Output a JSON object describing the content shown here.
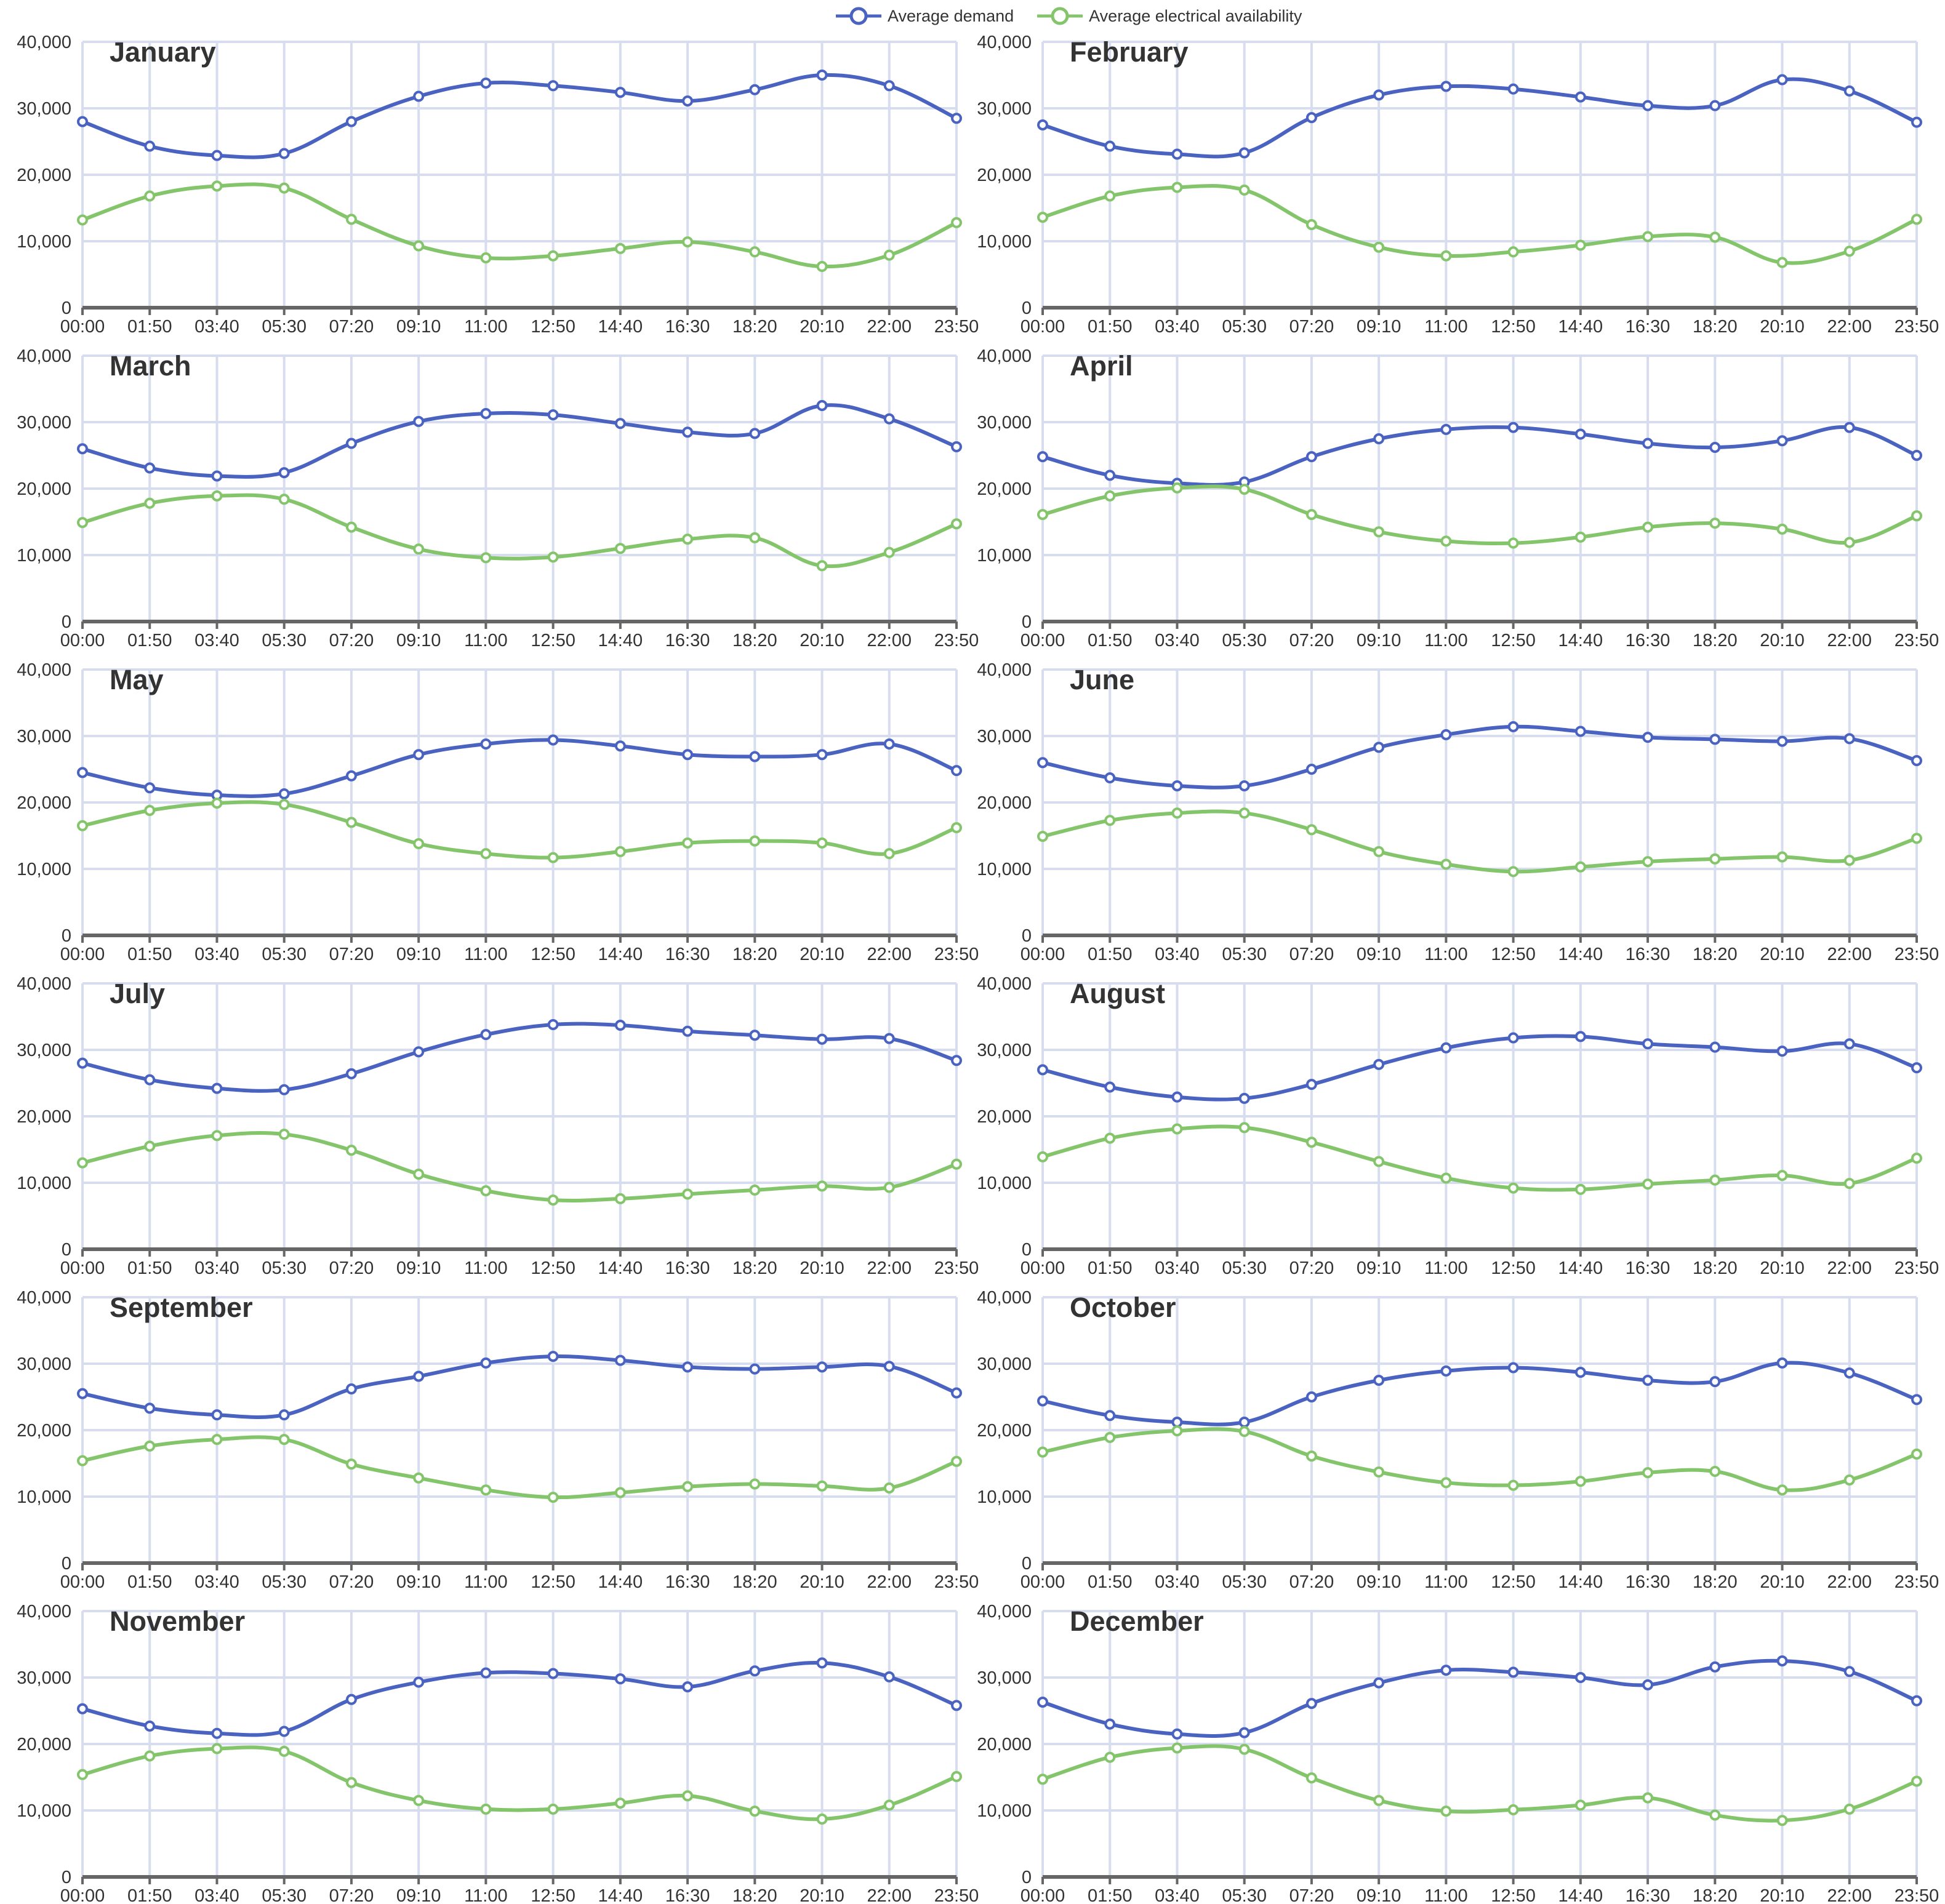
{
  "legend": {
    "demand_label": "Average demand",
    "availability_label": "Average electrical availability"
  },
  "colors": {
    "demand": "#4a63c1",
    "availability": "#84c56b",
    "grid": "#d7ddef",
    "axis": "#666666",
    "text": "#333333"
  },
  "chart_data": [
    {
      "type": "line",
      "title": "January",
      "x": [
        "00:00",
        "01:50",
        "03:40",
        "05:30",
        "07:20",
        "09:10",
        "11:00",
        "12:50",
        "14:40",
        "16:30",
        "18:20",
        "20:10",
        "22:00",
        "23:50"
      ],
      "ylim": [
        0,
        40000
      ],
      "yticks": [
        0,
        10000,
        20000,
        30000,
        40000
      ],
      "grid": true,
      "legend": "top-center",
      "series": [
        {
          "name": "Average demand",
          "values": [
            28000,
            24300,
            22900,
            23200,
            28000,
            31800,
            33800,
            33400,
            32400,
            31100,
            32800,
            35000,
            33400,
            28500
          ]
        },
        {
          "name": "Average electrical availability",
          "values": [
            13200,
            16800,
            18300,
            18000,
            13300,
            9300,
            7500,
            7800,
            8900,
            9900,
            8400,
            6200,
            7900,
            12800
          ]
        }
      ]
    },
    {
      "type": "line",
      "title": "February",
      "x": [
        "00:00",
        "01:50",
        "03:40",
        "05:30",
        "07:20",
        "09:10",
        "11:00",
        "12:50",
        "14:40",
        "16:30",
        "18:20",
        "20:10",
        "22:00",
        "23:50"
      ],
      "ylim": [
        0,
        40000
      ],
      "yticks": [
        0,
        10000,
        20000,
        30000,
        40000
      ],
      "grid": true,
      "legend": "top-center",
      "series": [
        {
          "name": "Average demand",
          "values": [
            27500,
            24300,
            23100,
            23300,
            28600,
            32000,
            33300,
            32900,
            31700,
            30400,
            30400,
            34300,
            32600,
            27900
          ]
        },
        {
          "name": "Average electrical availability",
          "values": [
            13600,
            16800,
            18100,
            17700,
            12500,
            9100,
            7800,
            8400,
            9400,
            10700,
            10600,
            6800,
            8500,
            13300
          ]
        }
      ]
    },
    {
      "type": "line",
      "title": "March",
      "x": [
        "00:00",
        "01:50",
        "03:40",
        "05:30",
        "07:20",
        "09:10",
        "11:00",
        "12:50",
        "14:40",
        "16:30",
        "18:20",
        "20:10",
        "22:00",
        "23:50"
      ],
      "ylim": [
        0,
        40000
      ],
      "yticks": [
        0,
        10000,
        20000,
        30000,
        40000
      ],
      "grid": true,
      "legend": "top-center",
      "series": [
        {
          "name": "Average demand",
          "values": [
            26000,
            23100,
            21900,
            22400,
            26800,
            30100,
            31300,
            31100,
            29800,
            28500,
            28300,
            32500,
            30500,
            26300
          ]
        },
        {
          "name": "Average electrical availability",
          "values": [
            14900,
            17800,
            18900,
            18400,
            14200,
            10900,
            9600,
            9700,
            11000,
            12400,
            12600,
            8400,
            10400,
            14700
          ]
        }
      ]
    },
    {
      "type": "line",
      "title": "April",
      "x": [
        "00:00",
        "01:50",
        "03:40",
        "05:30",
        "07:20",
        "09:10",
        "11:00",
        "12:50",
        "14:40",
        "16:30",
        "18:20",
        "20:10",
        "22:00",
        "23:50"
      ],
      "ylim": [
        0,
        40000
      ],
      "yticks": [
        0,
        10000,
        20000,
        30000,
        40000
      ],
      "grid": true,
      "legend": "top-center",
      "series": [
        {
          "name": "Average demand",
          "values": [
            24800,
            22000,
            20800,
            21000,
            24800,
            27500,
            28900,
            29200,
            28200,
            26800,
            26200,
            27200,
            29200,
            25000
          ]
        },
        {
          "name": "Average electrical availability",
          "values": [
            16100,
            18900,
            20100,
            19900,
            16100,
            13500,
            12100,
            11800,
            12700,
            14200,
            14800,
            13900,
            11900,
            15900
          ]
        }
      ]
    },
    {
      "type": "line",
      "title": "May",
      "x": [
        "00:00",
        "01:50",
        "03:40",
        "05:30",
        "07:20",
        "09:10",
        "11:00",
        "12:50",
        "14:40",
        "16:30",
        "18:20",
        "20:10",
        "22:00",
        "23:50"
      ],
      "ylim": [
        0,
        40000
      ],
      "yticks": [
        0,
        10000,
        20000,
        30000,
        40000
      ],
      "grid": true,
      "legend": "top-center",
      "series": [
        {
          "name": "Average demand",
          "values": [
            24500,
            22200,
            21100,
            21300,
            24000,
            27200,
            28800,
            29400,
            28500,
            27200,
            26900,
            27200,
            28800,
            24800
          ]
        },
        {
          "name": "Average electrical availability",
          "values": [
            16500,
            18800,
            19900,
            19700,
            17000,
            13800,
            12300,
            11700,
            12600,
            13900,
            14200,
            13900,
            12300,
            16200
          ]
        }
      ]
    },
    {
      "type": "line",
      "title": "June",
      "x": [
        "00:00",
        "01:50",
        "03:40",
        "05:30",
        "07:20",
        "09:10",
        "11:00",
        "12:50",
        "14:40",
        "16:30",
        "18:20",
        "20:10",
        "22:00",
        "23:50"
      ],
      "ylim": [
        0,
        40000
      ],
      "yticks": [
        0,
        10000,
        20000,
        30000,
        40000
      ],
      "grid": true,
      "legend": "top-center",
      "series": [
        {
          "name": "Average demand",
          "values": [
            26000,
            23700,
            22500,
            22500,
            25000,
            28300,
            30200,
            31400,
            30700,
            29800,
            29500,
            29200,
            29600,
            26300
          ]
        },
        {
          "name": "Average electrical availability",
          "values": [
            14900,
            17300,
            18400,
            18400,
            15900,
            12600,
            10700,
            9600,
            10300,
            11100,
            11500,
            11800,
            11300,
            14600
          ]
        }
      ]
    },
    {
      "type": "line",
      "title": "July",
      "x": [
        "00:00",
        "01:50",
        "03:40",
        "05:30",
        "07:20",
        "09:10",
        "11:00",
        "12:50",
        "14:40",
        "16:30",
        "18:20",
        "20:10",
        "22:00",
        "23:50"
      ],
      "ylim": [
        0,
        40000
      ],
      "yticks": [
        0,
        10000,
        20000,
        30000,
        40000
      ],
      "grid": true,
      "legend": "top-center",
      "series": [
        {
          "name": "Average demand",
          "values": [
            28000,
            25500,
            24200,
            24000,
            26400,
            29700,
            32300,
            33800,
            33700,
            32800,
            32200,
            31600,
            31700,
            28400
          ]
        },
        {
          "name": "Average electrical availability",
          "values": [
            13000,
            15500,
            17100,
            17300,
            14900,
            11300,
            8800,
            7400,
            7600,
            8300,
            8900,
            9500,
            9300,
            12800
          ]
        }
      ]
    },
    {
      "type": "line",
      "title": "August",
      "x": [
        "00:00",
        "01:50",
        "03:40",
        "05:30",
        "07:20",
        "09:10",
        "11:00",
        "12:50",
        "14:40",
        "16:30",
        "18:20",
        "20:10",
        "22:00",
        "23:50"
      ],
      "ylim": [
        0,
        40000
      ],
      "yticks": [
        0,
        10000,
        20000,
        30000,
        40000
      ],
      "grid": true,
      "legend": "top-center",
      "series": [
        {
          "name": "Average demand",
          "values": [
            27000,
            24400,
            22900,
            22700,
            24800,
            27800,
            30300,
            31800,
            32000,
            30900,
            30400,
            29800,
            30900,
            27300
          ]
        },
        {
          "name": "Average electrical availability",
          "values": [
            13900,
            16700,
            18100,
            18300,
            16100,
            13200,
            10700,
            9200,
            9000,
            9800,
            10400,
            11100,
            9900,
            13700
          ]
        }
      ]
    },
    {
      "type": "line",
      "title": "September",
      "x": [
        "00:00",
        "01:50",
        "03:40",
        "05:30",
        "07:20",
        "09:10",
        "11:00",
        "12:50",
        "14:40",
        "16:30",
        "18:20",
        "20:10",
        "22:00",
        "23:50"
      ],
      "ylim": [
        0,
        40000
      ],
      "yticks": [
        0,
        10000,
        20000,
        30000,
        40000
      ],
      "grid": true,
      "legend": "top-center",
      "series": [
        {
          "name": "Average demand",
          "values": [
            25500,
            23300,
            22300,
            22300,
            26200,
            28100,
            30100,
            31100,
            30500,
            29500,
            29200,
            29500,
            29600,
            25600
          ]
        },
        {
          "name": "Average electrical availability",
          "values": [
            15400,
            17600,
            18600,
            18600,
            14900,
            12800,
            11000,
            9900,
            10600,
            11500,
            11900,
            11600,
            11300,
            15300
          ]
        }
      ]
    },
    {
      "type": "line",
      "title": "October",
      "x": [
        "00:00",
        "01:50",
        "03:40",
        "05:30",
        "07:20",
        "09:10",
        "11:00",
        "12:50",
        "14:40",
        "16:30",
        "18:20",
        "20:10",
        "22:00",
        "23:50"
      ],
      "ylim": [
        0,
        40000
      ],
      "yticks": [
        0,
        10000,
        20000,
        30000,
        40000
      ],
      "grid": true,
      "legend": "top-center",
      "series": [
        {
          "name": "Average demand",
          "values": [
            24400,
            22200,
            21200,
            21200,
            25000,
            27500,
            28900,
            29400,
            28700,
            27500,
            27300,
            30100,
            28600,
            24600
          ]
        },
        {
          "name": "Average electrical availability",
          "values": [
            16700,
            18900,
            19900,
            19800,
            16100,
            13700,
            12100,
            11700,
            12300,
            13600,
            13800,
            11000,
            12500,
            16400
          ]
        }
      ]
    },
    {
      "type": "line",
      "title": "November",
      "x": [
        "00:00",
        "01:50",
        "03:40",
        "05:30",
        "07:20",
        "09:10",
        "11:00",
        "12:50",
        "14:40",
        "16:30",
        "18:20",
        "20:10",
        "22:00",
        "23:50"
      ],
      "ylim": [
        0,
        40000
      ],
      "yticks": [
        0,
        10000,
        20000,
        30000,
        40000
      ],
      "grid": true,
      "legend": "top-center",
      "series": [
        {
          "name": "Average demand",
          "values": [
            25300,
            22700,
            21600,
            21900,
            26700,
            29300,
            30700,
            30600,
            29800,
            28600,
            31000,
            32200,
            30100,
            25800
          ]
        },
        {
          "name": "Average electrical availability",
          "values": [
            15400,
            18200,
            19300,
            18900,
            14200,
            11500,
            10200,
            10200,
            11100,
            12200,
            9900,
            8700,
            10800,
            15100
          ]
        }
      ]
    },
    {
      "type": "line",
      "title": "December",
      "x": [
        "00:00",
        "01:50",
        "03:40",
        "05:30",
        "07:20",
        "09:10",
        "11:00",
        "12:50",
        "14:40",
        "16:30",
        "18:20",
        "20:10",
        "22:00",
        "23:50"
      ],
      "ylim": [
        0,
        40000
      ],
      "yticks": [
        0,
        10000,
        20000,
        30000,
        40000
      ],
      "grid": true,
      "legend": "top-center",
      "series": [
        {
          "name": "Average demand",
          "values": [
            26300,
            23000,
            21500,
            21700,
            26100,
            29200,
            31100,
            30800,
            30000,
            28900,
            31600,
            32500,
            30900,
            26500
          ]
        },
        {
          "name": "Average electrical availability",
          "values": [
            14700,
            18000,
            19400,
            19200,
            14900,
            11500,
            9900,
            10100,
            10800,
            11900,
            9300,
            8500,
            10200,
            14400
          ]
        }
      ]
    }
  ]
}
